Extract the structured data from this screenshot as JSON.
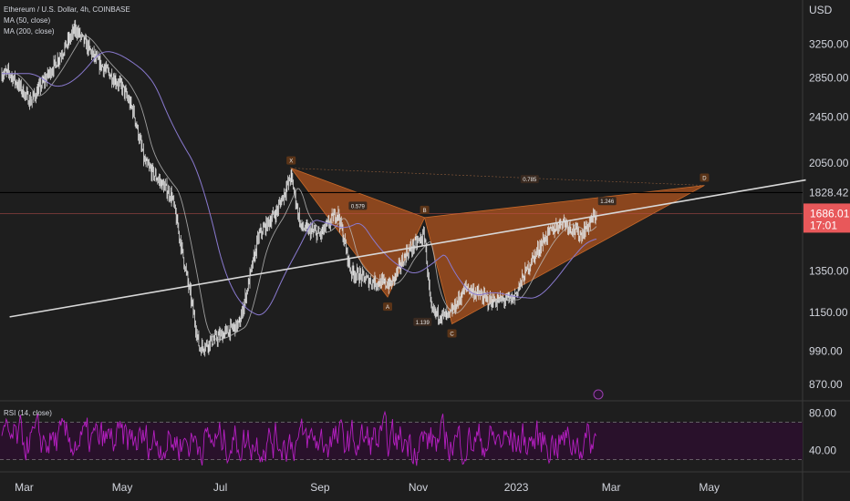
{
  "header": {
    "title": "Ethereum / U.S. Dollar, 4h, COINBASE",
    "ma50": "MA (50, close)",
    "ma200": "MA (200, close)",
    "rsi": "RSI (14, close)",
    "currency": "USD"
  },
  "colors": {
    "background": "#1e1e1e",
    "candle": "#e0e0e0",
    "ma50": "#ffffff",
    "ma200": "#8a7ad0",
    "pattern_fill": "#b5561e",
    "trendline": "#d8d8d8",
    "rsi_line": "#b61fc2",
    "rsi_band": "#2a0f2c",
    "price_badge": "#e8585a"
  },
  "chart_data": [
    {
      "type": "line",
      "name": "price",
      "y_scale": "log",
      "ylim": [
        820,
        3900
      ],
      "y_ticks": [
        "3250.00",
        "2850.00",
        "2450.00",
        "2050.00",
        "1828.42",
        "1350.00",
        "1150.00",
        "990.00",
        "870.00"
      ],
      "x_ticks": [
        "Mar",
        "May",
        "Jul",
        "Sep",
        "Nov",
        "2023",
        "Mar",
        "May"
      ],
      "x": [
        "2022-02-20",
        "2022-03-05",
        "2022-03-20",
        "2022-04-02",
        "2022-04-15",
        "2022-05-01",
        "2022-05-08",
        "2022-05-15",
        "2022-06-01",
        "2022-06-13",
        "2022-06-18",
        "2022-07-01",
        "2022-07-13",
        "2022-07-25",
        "2022-08-05",
        "2022-08-14",
        "2022-08-20",
        "2022-09-01",
        "2022-09-12",
        "2022-09-20",
        "2022-10-01",
        "2022-10-15",
        "2022-10-25",
        "2022-11-05",
        "2022-11-09",
        "2022-11-20",
        "2022-12-01",
        "2022-12-15",
        "2022-12-30",
        "2023-01-10",
        "2023-01-20",
        "2023-01-30",
        "2023-02-10",
        "2023-02-20"
      ],
      "y": [
        2900,
        2600,
        3000,
        3450,
        3050,
        2750,
        2500,
        2050,
        1800,
        1200,
        1000,
        1050,
        1100,
        1550,
        1700,
        1950,
        1600,
        1550,
        1700,
        1350,
        1300,
        1280,
        1450,
        1550,
        1150,
        1130,
        1270,
        1200,
        1210,
        1400,
        1550,
        1640,
        1550,
        1686
      ],
      "current_price": "1686.01",
      "countdown": "17:01",
      "horizontal_level": 1828.42,
      "annotation_line_label": "1.246",
      "pattern": {
        "points": [
          {
            "label": "X",
            "date": "2022-08-14",
            "price": 2010
          },
          {
            "label": "A",
            "date": "2022-10-13",
            "price": 1220
          },
          {
            "label": "B",
            "date": "2022-11-05",
            "price": 1660
          },
          {
            "label": "C",
            "date": "2022-11-22",
            "price": 1100
          },
          {
            "label": "D",
            "date": "2023-04-28",
            "price": 1880
          }
        ],
        "ratios": [
          {
            "text": "0.579"
          },
          {
            "text": "0.785"
          },
          {
            "text": "1.139"
          },
          {
            "text": "1.246"
          }
        ]
      },
      "trendline": {
        "start": {
          "date": "2022-02-20",
          "price": 1130
        },
        "end": {
          "date": "2023-06-30",
          "price": 1920
        }
      }
    },
    {
      "type": "line",
      "name": "RSI (14, close)",
      "ylim": [
        20,
        90
      ],
      "y_ticks": [
        "80.00",
        "40.00"
      ],
      "band": [
        30,
        70
      ]
    }
  ]
}
